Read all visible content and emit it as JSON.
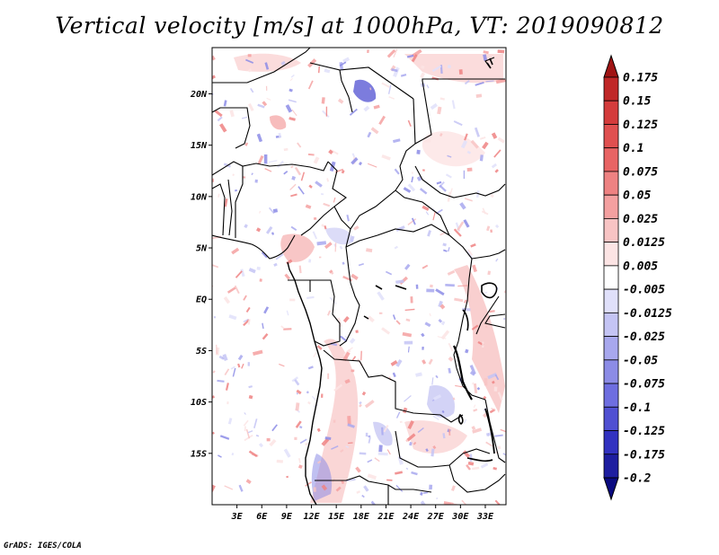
{
  "title": "Vertical velocity [m/s] at 1000hPa, VT: 2019090812",
  "footer": "GrADS: IGES/COLA",
  "map": {
    "lat_range": [
      -20,
      24.5
    ],
    "lon_range": [
      0,
      35.5
    ],
    "lat_ticks": [
      {
        "value": 20,
        "label": "20N"
      },
      {
        "value": 15,
        "label": "15N"
      },
      {
        "value": 10,
        "label": "10N"
      },
      {
        "value": 5,
        "label": "5N"
      },
      {
        "value": 0,
        "label": "EQ"
      },
      {
        "value": -5,
        "label": "5S"
      },
      {
        "value": -10,
        "label": "10S"
      },
      {
        "value": -15,
        "label": "15S"
      }
    ],
    "lon_ticks": [
      {
        "value": 3,
        "label": "3E"
      },
      {
        "value": 6,
        "label": "6E"
      },
      {
        "value": 9,
        "label": "9E"
      },
      {
        "value": 12,
        "label": "12E"
      },
      {
        "value": 15,
        "label": "15E"
      },
      {
        "value": 18,
        "label": "18E"
      },
      {
        "value": 21,
        "label": "21E"
      },
      {
        "value": 24,
        "label": "24E"
      },
      {
        "value": 27,
        "label": "27E"
      },
      {
        "value": 30,
        "label": "30E"
      },
      {
        "value": 33,
        "label": "33E"
      }
    ]
  },
  "colorbar": {
    "labels": [
      "0.175",
      "0.15",
      "0.125",
      "0.1",
      "0.075",
      "0.05",
      "0.025",
      "0.0125",
      "0.005",
      "-0.005",
      "-0.0125",
      "-0.025",
      "-0.05",
      "-0.075",
      "-0.1",
      "-0.125",
      "-0.175",
      "-0.2"
    ],
    "colors": [
      "#a01414",
      "#c02828",
      "#d43c3c",
      "#e05050",
      "#e86464",
      "#ee8282",
      "#f4a0a0",
      "#f8c4c4",
      "#fce4e4",
      "#ffffff",
      "#e0e0fa",
      "#c4c4f4",
      "#a8a8ee",
      "#8c8ce6",
      "#6e6ee0",
      "#5050d2",
      "#3232c0",
      "#1e1ea0",
      "#0a0a80"
    ]
  }
}
